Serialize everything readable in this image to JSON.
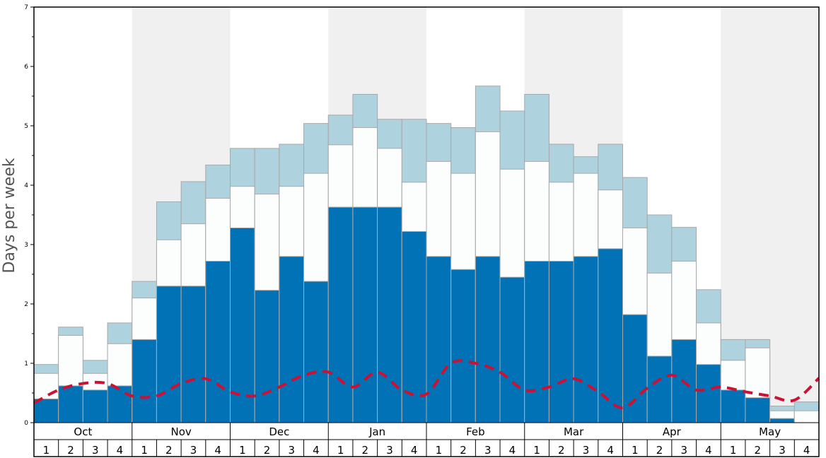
{
  "chart_data": {
    "type": "bar",
    "ylabel": "Days per week",
    "ylim": [
      0,
      7
    ],
    "yticks": [
      "0",
      "1",
      "2",
      "3",
      "4",
      "5",
      "6",
      "7"
    ],
    "months": [
      "Oct",
      "Nov",
      "Dec",
      "Jan",
      "Feb",
      "Mar",
      "Apr",
      "May"
    ],
    "week_labels": [
      "1",
      "2",
      "3",
      "4",
      "1",
      "2",
      "3",
      "4",
      "1",
      "2",
      "3",
      "4",
      "1",
      "2",
      "3",
      "4",
      "1",
      "2",
      "3",
      "4",
      "1",
      "2",
      "3",
      "4",
      "1",
      "2",
      "3",
      "4",
      "1",
      "2",
      "3",
      "4"
    ],
    "colors": {
      "dark": "#0072b5",
      "mid": "#fcfdfd",
      "light": "#afd2df",
      "line": "#cc1133",
      "shade": "#f0f0f1",
      "bar_edge": "#a8a8a8"
    },
    "series": [
      {
        "name": "dark",
        "values": [
          0.4,
          0.62,
          0.55,
          0.62,
          1.4,
          2.3,
          2.3,
          2.72,
          3.28,
          2.23,
          2.8,
          2.38,
          3.63,
          3.63,
          3.63,
          3.22,
          2.8,
          2.58,
          2.8,
          2.45,
          2.72,
          2.72,
          2.8,
          2.93,
          1.82,
          1.12,
          1.4,
          0.98,
          0.55,
          0.42,
          0.07,
          0.0
        ]
      },
      {
        "name": "mid",
        "values": [
          0.83,
          1.47,
          0.83,
          1.33,
          2.1,
          3.08,
          3.35,
          3.78,
          3.98,
          3.85,
          3.98,
          4.2,
          4.68,
          4.97,
          4.62,
          4.05,
          4.4,
          4.2,
          4.9,
          4.27,
          4.4,
          4.05,
          4.2,
          3.92,
          3.28,
          2.52,
          2.72,
          1.68,
          1.05,
          1.26,
          0.2,
          0.2
        ]
      },
      {
        "name": "light",
        "values": [
          0.98,
          1.61,
          1.05,
          1.68,
          2.38,
          3.72,
          4.06,
          4.34,
          4.62,
          4.62,
          4.69,
          5.04,
          5.18,
          5.53,
          5.11,
          5.11,
          5.04,
          4.97,
          5.67,
          5.25,
          5.53,
          4.69,
          4.48,
          4.69,
          4.13,
          3.5,
          3.29,
          2.24,
          1.4,
          1.4,
          0.28,
          0.35
        ]
      },
      {
        "name": "line",
        "values": [
          0.33,
          0.55,
          0.66,
          0.66,
          0.45,
          0.45,
          0.66,
          0.74,
          0.52,
          0.45,
          0.6,
          0.8,
          0.85,
          0.6,
          0.85,
          0.55,
          0.48,
          1.0,
          1.0,
          0.85,
          0.55,
          0.6,
          0.74,
          0.52,
          0.25,
          0.58,
          0.8,
          0.55,
          0.6,
          0.52,
          0.45,
          0.38,
          0.75
        ]
      }
    ]
  }
}
